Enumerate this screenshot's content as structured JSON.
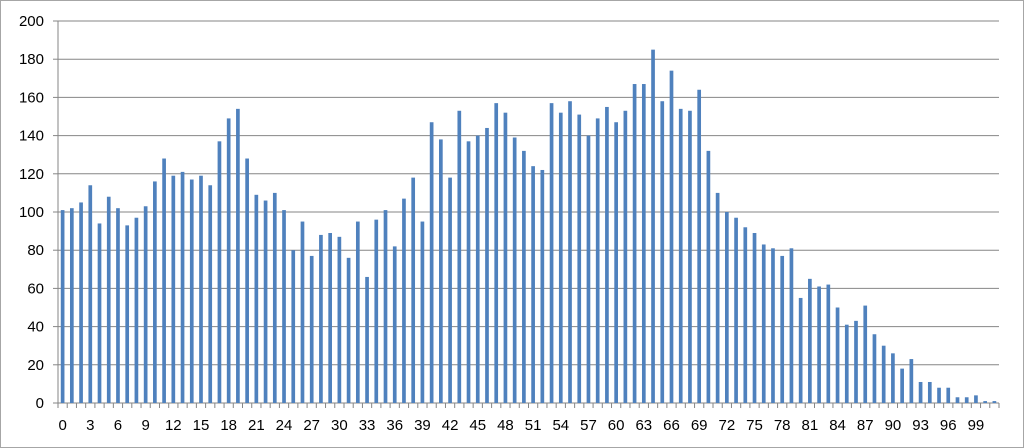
{
  "chart_data": {
    "type": "bar",
    "title": "",
    "xlabel": "",
    "ylabel": "",
    "ylim": [
      0,
      200
    ],
    "y_ticks": [
      0,
      20,
      40,
      60,
      80,
      100,
      120,
      140,
      160,
      180,
      200
    ],
    "x": [
      0,
      1,
      2,
      3,
      4,
      5,
      6,
      7,
      8,
      9,
      10,
      11,
      12,
      13,
      14,
      15,
      16,
      17,
      18,
      19,
      20,
      21,
      22,
      23,
      24,
      25,
      26,
      27,
      28,
      29,
      30,
      31,
      32,
      33,
      34,
      35,
      36,
      37,
      38,
      39,
      40,
      41,
      42,
      43,
      44,
      45,
      46,
      47,
      48,
      49,
      50,
      51,
      52,
      53,
      54,
      55,
      56,
      57,
      58,
      59,
      60,
      61,
      62,
      63,
      64,
      65,
      66,
      67,
      68,
      69,
      70,
      71,
      72,
      73,
      74,
      75,
      76,
      77,
      78,
      79,
      80,
      81,
      82,
      83,
      84,
      85,
      86,
      87,
      88,
      89,
      90,
      91,
      92,
      93,
      94,
      95,
      96,
      97,
      98,
      99,
      100,
      101
    ],
    "x_tick_labels": [
      "0",
      "3",
      "6",
      "9",
      "12",
      "15",
      "18",
      "21",
      "24",
      "27",
      "30",
      "33",
      "36",
      "39",
      "42",
      "45",
      "48",
      "51",
      "54",
      "57",
      "60",
      "63",
      "66",
      "69",
      "72",
      "75",
      "78",
      "81",
      "84",
      "87",
      "90",
      "93",
      "96",
      "99"
    ],
    "values": [
      101,
      102,
      105,
      114,
      94,
      108,
      102,
      93,
      97,
      103,
      116,
      128,
      119,
      121,
      117,
      119,
      114,
      137,
      149,
      154,
      128,
      109,
      106,
      110,
      101,
      80,
      95,
      77,
      88,
      89,
      87,
      76,
      95,
      66,
      96,
      101,
      82,
      107,
      118,
      95,
      147,
      138,
      118,
      153,
      137,
      140,
      144,
      157,
      152,
      139,
      132,
      124,
      122,
      157,
      152,
      158,
      151,
      140,
      149,
      155,
      147,
      153,
      167,
      167,
      185,
      158,
      174,
      154,
      153,
      164,
      132,
      110,
      100,
      97,
      92,
      89,
      83,
      81,
      77,
      81,
      55,
      65,
      61,
      62,
      50,
      41,
      43,
      51,
      36,
      30,
      26,
      18,
      23,
      11,
      11,
      8,
      8,
      3,
      3,
      4,
      1,
      1
    ],
    "bar_color": "#4f81bd",
    "grid": true,
    "legend": "none"
  }
}
